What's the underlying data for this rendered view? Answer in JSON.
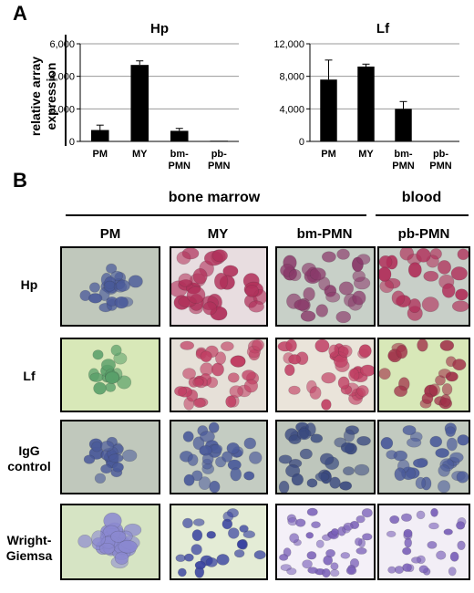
{
  "panel_a_label": "A",
  "panel_b_label": "B",
  "chart_data": [
    {
      "type": "bar",
      "title": "Hp",
      "ylabel": "relative array expression",
      "categories": [
        [
          "PM"
        ],
        [
          "MY"
        ],
        [
          "bm-",
          "PMN"
        ],
        [
          "pb-",
          "PMN"
        ]
      ],
      "values": [
        700,
        4700,
        650,
        40
      ],
      "errors": [
        300,
        250,
        150,
        0
      ],
      "ylim": [
        0,
        6000
      ],
      "yticks": [
        0,
        2000,
        4000,
        6000
      ],
      "ytick_labels": [
        "0",
        "2,000",
        "4,000",
        "6,000"
      ],
      "grid": true
    },
    {
      "type": "bar",
      "title": "Lf",
      "categories": [
        [
          "PM"
        ],
        [
          "MY"
        ],
        [
          "bm-",
          "PMN"
        ],
        [
          "pb-",
          "PMN"
        ]
      ],
      "values": [
        7600,
        9200,
        4000,
        50
      ],
      "errors": [
        2400,
        300,
        900,
        0
      ],
      "ylim": [
        0,
        12000
      ],
      "yticks": [
        0,
        4000,
        8000,
        12000
      ],
      "ytick_labels": [
        "0",
        "4,000",
        "8,000",
        "12,000"
      ],
      "grid": true
    }
  ],
  "panel_b": {
    "groups": [
      "bone marrow",
      "blood"
    ],
    "columns": [
      "PM",
      "MY",
      "bm-PMN",
      "pb-PMN"
    ],
    "rows": [
      [
        "Hp"
      ],
      [
        "Lf"
      ],
      [
        "IgG",
        "control"
      ],
      [
        "Wright-",
        "Giemsa"
      ]
    ]
  },
  "colors": {
    "bar": "#000000",
    "hp_stain": "#b0305a",
    "lf_stain": "#c04064",
    "hematoxylin": "#4a5a9a",
    "giemsa": "#7a60b8",
    "green_bg": "#d8e8b8",
    "grey_bg": "#c0c8bc"
  }
}
